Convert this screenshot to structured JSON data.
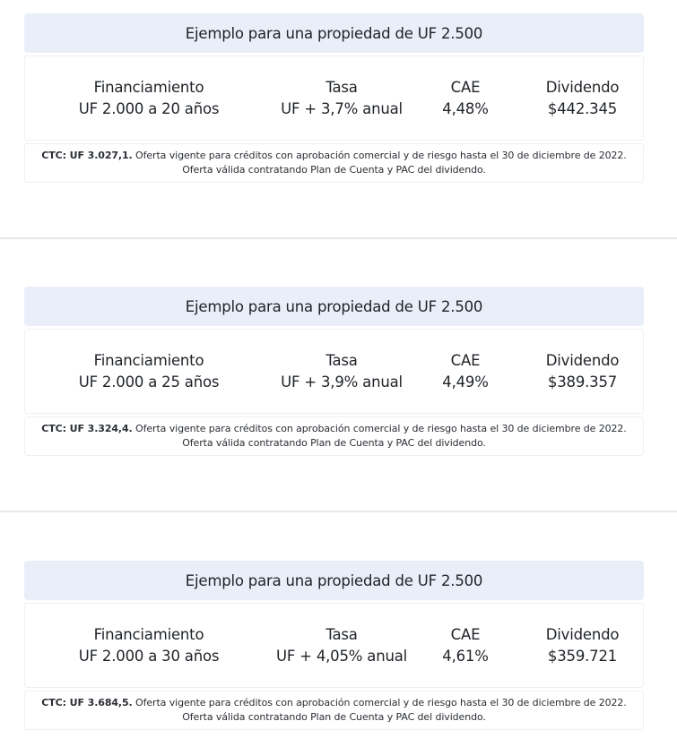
{
  "offers": [
    {
      "title": "Ejemplo para una propiedad de UF 2.500",
      "columns": [
        {
          "label": "Financiamiento",
          "value": "UF 2.000 a 20 años"
        },
        {
          "label": "Tasa",
          "value": "UF + 3,7% anual"
        },
        {
          "label": "CAE",
          "value": "4,48%"
        },
        {
          "label": "Dividendo",
          "value": "$442.345"
        }
      ],
      "ctc": "CTC: UF 3.027,1.",
      "note": "Oferta vigente para créditos con aprobación comercial y de riesgo hasta el 30 de diciembre de 2022. Oferta válida contratando Plan de Cuenta y PAC del dividendo."
    },
    {
      "title": "Ejemplo para una propiedad de UF 2.500",
      "columns": [
        {
          "label": "Financiamiento",
          "value": "UF 2.000 a 25 años"
        },
        {
          "label": "Tasa",
          "value": "UF + 3,9% anual"
        },
        {
          "label": "CAE",
          "value": "4,49%"
        },
        {
          "label": "Dividendo",
          "value": "$389.357"
        }
      ],
      "ctc": "CTC: UF 3.324,4.",
      "note": "Oferta vigente para créditos con aprobación comercial y de riesgo hasta el 30 de diciembre de 2022. Oferta válida contratando Plan de Cuenta y PAC del dividendo."
    },
    {
      "title": "Ejemplo para una propiedad de UF 2.500",
      "columns": [
        {
          "label": "Financiamiento",
          "value": "UF 2.000 a 30 años"
        },
        {
          "label": "Tasa",
          "value": "UF + 4,05% anual"
        },
        {
          "label": "CAE",
          "value": "4,61%"
        },
        {
          "label": "Dividendo",
          "value": "$359.721"
        }
      ],
      "ctc": "CTC: UF 3.684,5.",
      "note": "Oferta vigente para créditos con aprobación comercial y de riesgo hasta el 30 de diciembre de 2022. Oferta válida contratando Plan de Cuenta y PAC del dividendo."
    }
  ],
  "colors": {
    "header_bg": "#e9eef8",
    "divider": "#e6e7e9"
  }
}
